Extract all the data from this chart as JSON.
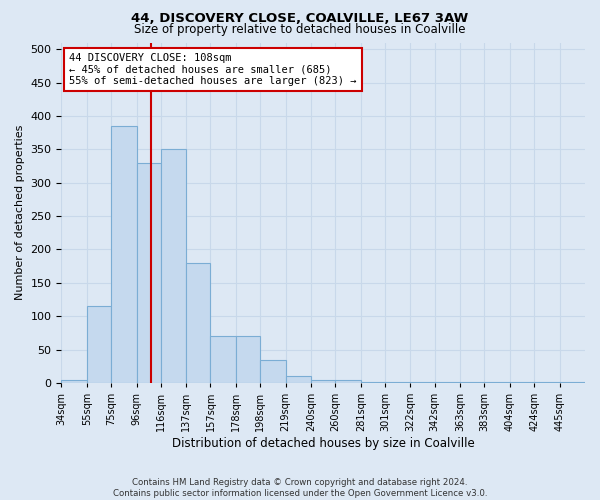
{
  "title1": "44, DISCOVERY CLOSE, COALVILLE, LE67 3AW",
  "title2": "Size of property relative to detached houses in Coalville",
  "xlabel": "Distribution of detached houses by size in Coalville",
  "ylabel": "Number of detached properties",
  "bin_labels": [
    "34sqm",
    "55sqm",
    "75sqm",
    "96sqm",
    "116sqm",
    "137sqm",
    "157sqm",
    "178sqm",
    "198sqm",
    "219sqm",
    "240sqm",
    "260sqm",
    "281sqm",
    "301sqm",
    "322sqm",
    "342sqm",
    "363sqm",
    "383sqm",
    "404sqm",
    "424sqm",
    "445sqm"
  ],
  "bin_edges": [
    34,
    55,
    75,
    96,
    116,
    137,
    157,
    178,
    198,
    219,
    240,
    260,
    281,
    301,
    322,
    342,
    363,
    383,
    404,
    424,
    445,
    466
  ],
  "bar_heights": [
    5,
    115,
    385,
    330,
    350,
    180,
    70,
    70,
    35,
    10,
    5,
    5,
    2,
    2,
    2,
    2,
    2,
    2,
    2,
    2,
    2
  ],
  "bar_color": "#c5d9ee",
  "bar_edgecolor": "#7badd4",
  "property_size": 108,
  "property_line_color": "#cc0000",
  "annotation_text": "44 DISCOVERY CLOSE: 108sqm\n← 45% of detached houses are smaller (685)\n55% of semi-detached houses are larger (823) →",
  "annotation_box_color": "#ffffff",
  "annotation_box_edgecolor": "#cc0000",
  "grid_color": "#c8d8ea",
  "background_color": "#dde8f4",
  "ylim": [
    0,
    510
  ],
  "yticks": [
    0,
    50,
    100,
    150,
    200,
    250,
    300,
    350,
    400,
    450,
    500
  ],
  "footnote": "Contains HM Land Registry data © Crown copyright and database right 2024.\nContains public sector information licensed under the Open Government Licence v3.0."
}
